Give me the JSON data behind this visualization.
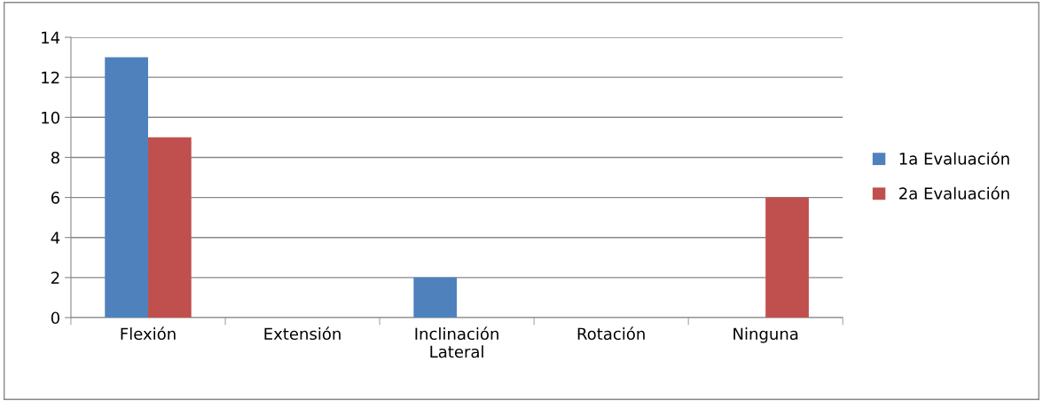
{
  "chart_data": {
    "type": "bar",
    "categories": [
      "Flexión",
      "Extensión",
      "Inclinación Lateral",
      "Rotación",
      "Ninguna"
    ],
    "series": [
      {
        "name": "1a Evaluación",
        "color": "#4f81bd",
        "values": [
          13,
          0,
          2,
          0,
          0
        ]
      },
      {
        "name": "2a Evaluación",
        "color": "#c0504d",
        "values": [
          9,
          0,
          0,
          0,
          6
        ]
      }
    ],
    "ylim": [
      0,
      14
    ],
    "yticks": [
      0,
      2,
      4,
      6,
      8,
      10,
      12,
      14
    ],
    "grid": "y",
    "legend": "right"
  }
}
